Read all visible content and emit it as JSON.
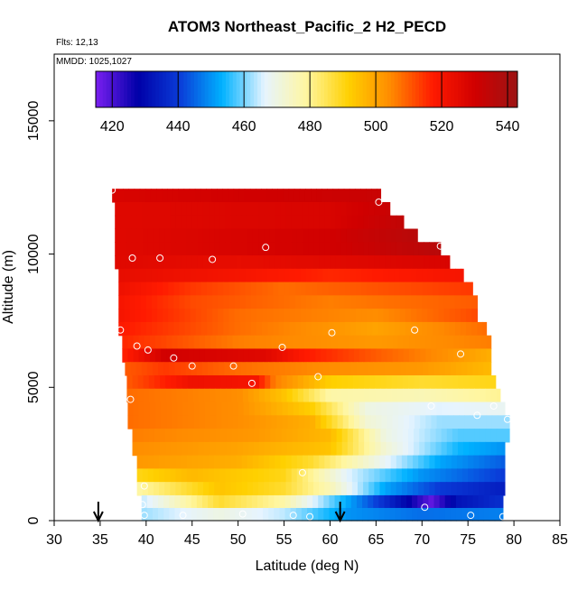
{
  "chart_data": {
    "type": "heatmap",
    "title": "ATOM3 Northeast_Pacific_2 H2_PECD",
    "annotations": {
      "flights": "Flts: 12,13",
      "dates": "MMDD: 1025,1027"
    },
    "xlabel": "Latitude (deg N)",
    "ylabel": "Altitude (m)",
    "xlim": [
      30,
      85
    ],
    "ylim": [
      0,
      17500
    ],
    "x_ticks": [
      30,
      35,
      40,
      45,
      50,
      55,
      60,
      65,
      70,
      75,
      80,
      85
    ],
    "y_ticks": [
      0,
      5000,
      10000,
      15000
    ],
    "colorbar": {
      "vmin": 415,
      "vmax": 543,
      "ticks": [
        420,
        440,
        460,
        480,
        500,
        520,
        540
      ],
      "colors": [
        "#7a1ff0",
        "#0000a8",
        "#0a3cd8",
        "#00b2ff",
        "#e6f4ff",
        "#fff6a0",
        "#ffd000",
        "#ff8a00",
        "#ff1a00",
        "#d00000",
        "#9c1414"
      ]
    },
    "arrows_latitude": [
      34.8,
      61.1
    ],
    "altitude_bands": [
      {
        "alt": 12200,
        "lat_min": 36.3,
        "lat_max": 65.5,
        "values": [
          [
            36.3,
            528
          ],
          [
            65.5,
            532
          ]
        ]
      },
      {
        "alt": 11700,
        "lat_min": 36.6,
        "lat_max": 66.5,
        "values": [
          [
            36.6,
            526
          ],
          [
            60,
            528
          ],
          [
            66.5,
            532
          ]
        ]
      },
      {
        "alt": 11200,
        "lat_min": 36.6,
        "lat_max": 68,
        "values": [
          [
            36.6,
            526
          ],
          [
            60,
            528
          ],
          [
            68,
            534
          ]
        ]
      },
      {
        "alt": 10700,
        "lat_min": 36.6,
        "lat_max": 69.5,
        "values": [
          [
            36.6,
            526
          ],
          [
            60,
            530
          ],
          [
            69.5,
            536
          ]
        ]
      },
      {
        "alt": 10200,
        "lat_min": 36.6,
        "lat_max": 72,
        "values": [
          [
            36.6,
            526
          ],
          [
            60,
            530
          ],
          [
            72,
            536
          ]
        ]
      },
      {
        "alt": 9700,
        "lat_min": 36.6,
        "lat_max": 73,
        "values": [
          [
            36.6,
            526
          ],
          [
            50,
            524
          ],
          [
            73,
            528
          ]
        ]
      },
      {
        "alt": 9200,
        "lat_min": 37,
        "lat_max": 74.5,
        "values": [
          [
            37,
            524
          ],
          [
            50,
            520
          ],
          [
            60,
            516
          ],
          [
            74.5,
            520
          ]
        ]
      },
      {
        "alt": 8700,
        "lat_min": 37,
        "lat_max": 75.5,
        "values": [
          [
            37,
            522
          ],
          [
            45,
            514
          ],
          [
            55,
            508
          ],
          [
            75.5,
            514
          ]
        ]
      },
      {
        "alt": 8200,
        "lat_min": 37,
        "lat_max": 76,
        "values": [
          [
            37,
            520
          ],
          [
            45,
            512
          ],
          [
            60,
            506
          ],
          [
            76,
            510
          ]
        ]
      },
      {
        "alt": 7700,
        "lat_min": 37,
        "lat_max": 76,
        "values": [
          [
            37,
            520
          ],
          [
            50,
            508
          ],
          [
            65,
            504
          ],
          [
            76,
            512
          ]
        ]
      },
      {
        "alt": 7200,
        "lat_min": 37,
        "lat_max": 77,
        "values": [
          [
            37,
            518
          ],
          [
            50,
            508
          ],
          [
            65,
            500
          ],
          [
            77,
            508
          ]
        ]
      },
      {
        "alt": 6700,
        "lat_min": 37.4,
        "lat_max": 77.5,
        "values": [
          [
            37.4,
            516
          ],
          [
            50,
            506
          ],
          [
            65,
            502
          ],
          [
            77.5,
            506
          ]
        ]
      },
      {
        "alt": 6200,
        "lat_min": 37.4,
        "lat_max": 77.5,
        "values": [
          [
            37.4,
            516
          ],
          [
            42,
            530
          ],
          [
            53,
            526
          ],
          [
            57,
            518
          ],
          [
            65,
            510
          ],
          [
            72,
            504
          ],
          [
            77.5,
            498
          ]
        ]
      },
      {
        "alt": 5700,
        "lat_min": 37.7,
        "lat_max": 77.5,
        "values": [
          [
            37.7,
            510
          ],
          [
            42,
            514
          ],
          [
            50,
            508
          ],
          [
            60,
            504
          ],
          [
            70,
            502
          ],
          [
            77.5,
            496
          ]
        ]
      },
      {
        "alt": 5200,
        "lat_min": 37.9,
        "lat_max": 78,
        "values": [
          [
            37.9,
            510
          ],
          [
            45,
            522
          ],
          [
            52,
            520
          ],
          [
            54,
            506
          ],
          [
            60,
            492
          ],
          [
            70,
            488
          ],
          [
            78,
            490
          ]
        ]
      },
      {
        "alt": 4700,
        "lat_min": 37.9,
        "lat_max": 78.5,
        "values": [
          [
            37.9,
            508
          ],
          [
            50,
            504
          ],
          [
            55,
            494
          ],
          [
            60,
            478
          ],
          [
            70,
            476
          ],
          [
            78.5,
            480
          ]
        ]
      },
      {
        "alt": 4200,
        "lat_min": 38,
        "lat_max": 79,
        "values": [
          [
            38,
            508
          ],
          [
            50,
            504
          ],
          [
            58,
            492
          ],
          [
            64,
            470
          ],
          [
            72,
            466
          ],
          [
            79,
            468
          ]
        ]
      },
      {
        "alt": 3700,
        "lat_min": 38,
        "lat_max": 79.5,
        "values": [
          [
            38,
            508
          ],
          [
            50,
            504
          ],
          [
            58,
            498
          ],
          [
            64,
            472
          ],
          [
            72,
            462
          ],
          [
            79.5,
            462
          ]
        ]
      },
      {
        "alt": 3200,
        "lat_min": 38.5,
        "lat_max": 79.5,
        "values": [
          [
            38.5,
            506
          ],
          [
            52,
            502
          ],
          [
            60,
            496
          ],
          [
            66,
            470
          ],
          [
            74,
            458
          ],
          [
            79.5,
            458
          ]
        ]
      },
      {
        "alt": 2700,
        "lat_min": 38.5,
        "lat_max": 79,
        "values": [
          [
            38.5,
            504
          ],
          [
            50,
            500
          ],
          [
            60,
            494
          ],
          [
            66,
            472
          ],
          [
            74,
            454
          ],
          [
            79,
            450
          ]
        ]
      },
      {
        "alt": 2200,
        "lat_min": 39,
        "lat_max": 79,
        "values": [
          [
            39,
            502
          ],
          [
            50,
            498
          ],
          [
            58,
            488
          ],
          [
            65,
            470
          ],
          [
            72,
            452
          ],
          [
            79,
            444
          ]
        ]
      },
      {
        "alt": 1700,
        "lat_min": 39,
        "lat_max": 79,
        "values": [
          [
            39,
            490
          ],
          [
            45,
            496
          ],
          [
            55,
            490
          ],
          [
            62,
            466
          ],
          [
            70,
            450
          ],
          [
            79,
            440
          ]
        ]
      },
      {
        "alt": 1200,
        "lat_min": 39,
        "lat_max": 79,
        "values": [
          [
            39,
            478
          ],
          [
            48,
            494
          ],
          [
            55,
            488
          ],
          [
            60,
            476
          ],
          [
            66,
            452
          ],
          [
            72,
            440
          ],
          [
            79,
            434
          ]
        ]
      },
      {
        "alt": 700,
        "lat_min": 39.5,
        "lat_max": 78.8,
        "values": [
          [
            39.5,
            464
          ],
          [
            48,
            488
          ],
          [
            55,
            478
          ],
          [
            62,
            452
          ],
          [
            68,
            430
          ],
          [
            71,
            418
          ],
          [
            74,
            432
          ],
          [
            78.8,
            438
          ]
        ]
      },
      {
        "alt": 250,
        "lat_min": 39.5,
        "lat_max": 78.8,
        "values": [
          [
            39.5,
            462
          ],
          [
            48,
            470
          ],
          [
            55,
            464
          ],
          [
            62,
            450
          ],
          [
            70,
            446
          ],
          [
            78.8,
            448
          ]
        ]
      }
    ],
    "sample_points": [
      {
        "lat": 36.3,
        "alt": 12400
      },
      {
        "lat": 65.3,
        "alt": 11950
      },
      {
        "lat": 38.5,
        "alt": 9850
      },
      {
        "lat": 41.5,
        "alt": 9850
      },
      {
        "lat": 47.2,
        "alt": 9800
      },
      {
        "lat": 53.0,
        "alt": 10250
      },
      {
        "lat": 72.0,
        "alt": 10300
      },
      {
        "lat": 37.2,
        "alt": 7150
      },
      {
        "lat": 60.2,
        "alt": 7050
      },
      {
        "lat": 69.2,
        "alt": 7150
      },
      {
        "lat": 39.0,
        "alt": 6550
      },
      {
        "lat": 40.2,
        "alt": 6400
      },
      {
        "lat": 43.0,
        "alt": 6100
      },
      {
        "lat": 54.8,
        "alt": 6500
      },
      {
        "lat": 74.2,
        "alt": 6250
      },
      {
        "lat": 45.0,
        "alt": 5800
      },
      {
        "lat": 49.5,
        "alt": 5800
      },
      {
        "lat": 51.5,
        "alt": 5150
      },
      {
        "lat": 58.7,
        "alt": 5400
      },
      {
        "lat": 38.3,
        "alt": 4550
      },
      {
        "lat": 71.0,
        "alt": 4300
      },
      {
        "lat": 77.8,
        "alt": 4300
      },
      {
        "lat": 76.0,
        "alt": 3950
      },
      {
        "lat": 79.3,
        "alt": 3800
      },
      {
        "lat": 57.0,
        "alt": 1800
      },
      {
        "lat": 39.8,
        "alt": 1300
      },
      {
        "lat": 39.6,
        "alt": 600
      },
      {
        "lat": 70.3,
        "alt": 500
      },
      {
        "lat": 39.8,
        "alt": 200
      },
      {
        "lat": 44.0,
        "alt": 200
      },
      {
        "lat": 50.5,
        "alt": 250
      },
      {
        "lat": 56.0,
        "alt": 200
      },
      {
        "lat": 57.8,
        "alt": 150
      },
      {
        "lat": 75.3,
        "alt": 200
      },
      {
        "lat": 78.8,
        "alt": 150
      }
    ]
  }
}
